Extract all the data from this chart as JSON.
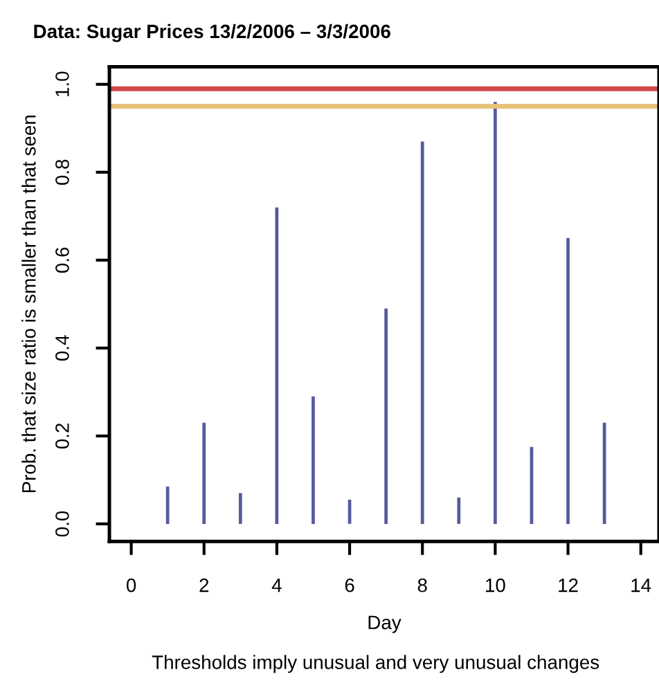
{
  "chart_data": {
    "type": "bar",
    "title": "Data: Sugar Prices 13/2/2006 – 3/3/2006",
    "xlabel": "Day",
    "ylabel": "Prob. that size ratio is smaller than that seen",
    "annotations": [
      "Thresholds imply unusual and very unusual changes"
    ],
    "x": [
      1,
      2,
      3,
      4,
      5,
      6,
      7,
      8,
      9,
      10,
      11,
      12,
      13
    ],
    "series": [
      {
        "color": "#555a9c",
        "values": [
          0.085,
          0.23,
          0.07,
          0.72,
          0.29,
          0.055,
          0.49,
          0.87,
          0.06,
          0.96,
          0.175,
          0.65,
          0.23
        ]
      }
    ],
    "ref_lines": [
      {
        "axis": "y",
        "value": 0.99,
        "color": "#d04848"
      },
      {
        "axis": "y",
        "value": 0.95,
        "color": "#e6c27a"
      }
    ],
    "xlim": [
      -0.6,
      14.5
    ],
    "ylim": [
      -0.04,
      1.04
    ],
    "xticks": [
      0,
      2,
      4,
      6,
      8,
      10,
      12,
      14
    ],
    "yticks": [
      {
        "value": 0,
        "label": "0.0"
      },
      0.2,
      0.4,
      0.6,
      0.8,
      {
        "value": 1,
        "label": "1.0"
      }
    ],
    "grid": false,
    "legend": false
  }
}
